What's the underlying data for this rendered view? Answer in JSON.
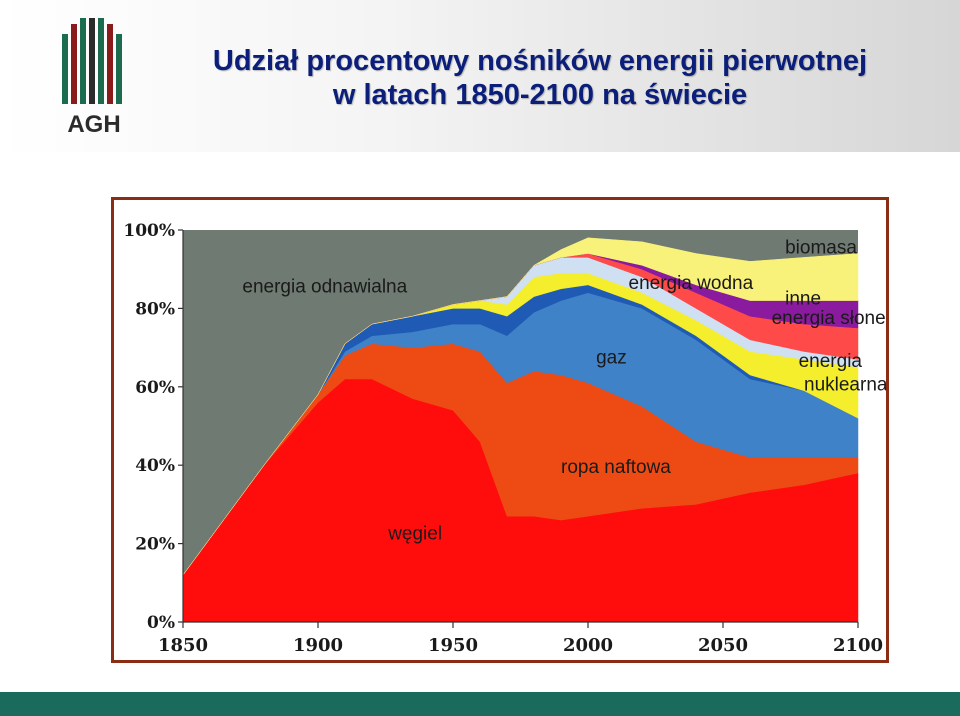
{
  "slide": {
    "title_line1": "Udział procentowy nośników energii pierwotnej",
    "title_line2": "w latach 1850-2100 na świecie",
    "logo_text": "AGH"
  },
  "colors": {
    "title": "#0b1f7a",
    "frame": "#8b2c14",
    "footer": "#1b6b5d",
    "plot_background": "#6f7a72"
  },
  "chart_data": {
    "type": "area",
    "stacked": true,
    "title": "",
    "xlabel": "",
    "ylabel": "",
    "xlim": [
      1850,
      2100
    ],
    "ylim": [
      0,
      100
    ],
    "x_ticks": [
      "1850",
      "1900",
      "1950",
      "2000",
      "2050",
      "2100"
    ],
    "y_ticks": [
      "0%",
      "20%",
      "40%",
      "60%",
      "80%",
      "100%"
    ],
    "grid": false,
    "legend": "none",
    "x": [
      1850,
      1880,
      1900,
      1910,
      1920,
      1935,
      1950,
      1960,
      1970,
      1980,
      1990,
      2000,
      2020,
      2040,
      2060,
      2080,
      2100
    ],
    "series": [
      {
        "key": "coal",
        "color": "#ff0d0d",
        "values": [
          12,
          40,
          56,
          62,
          62,
          57,
          54,
          46,
          27,
          27,
          26,
          27,
          29,
          30,
          33,
          35,
          38
        ]
      },
      {
        "key": "oil",
        "color": "#ee4b14",
        "values": [
          0,
          0,
          2,
          6,
          9,
          13,
          17,
          23,
          34,
          37,
          37,
          34,
          26,
          16,
          9,
          7,
          4
        ]
      },
      {
        "key": "gas",
        "color": "#3f82c8",
        "values": [
          0,
          0,
          0,
          1,
          2,
          4,
          5,
          7,
          12,
          15,
          19,
          23,
          25,
          26,
          20,
          17,
          10
        ]
      },
      {
        "key": "renewable",
        "color": "#1f5bb5",
        "values": [
          0,
          0,
          0,
          2,
          3,
          4,
          4,
          4,
          5,
          4,
          3,
          2,
          1,
          1,
          1,
          0,
          0
        ]
      },
      {
        "key": "nuclear",
        "color": "#f4ee2d",
        "values": [
          0,
          0,
          0,
          0,
          0,
          0,
          1,
          2,
          3,
          5,
          4,
          3,
          3,
          4,
          6,
          8,
          13
        ]
      },
      {
        "key": "hydro",
        "color": "#cfe0f2",
        "values": [
          0,
          0,
          0,
          0,
          0,
          0,
          0,
          0,
          2,
          3,
          4,
          4,
          4,
          3,
          3,
          2,
          2
        ]
      },
      {
        "key": "solar",
        "color": "#ff4a4a",
        "values": [
          0,
          0,
          0,
          0,
          0,
          0,
          0,
          0,
          0,
          0,
          0,
          1,
          2,
          4,
          6,
          7,
          8
        ]
      },
      {
        "key": "other",
        "color": "#8a1a9e",
        "values": [
          0,
          0,
          0,
          0,
          0,
          0,
          0,
          0,
          0,
          0,
          0,
          0,
          1,
          2,
          4,
          6,
          7
        ]
      },
      {
        "key": "biomass",
        "color": "#f8f27a",
        "values": [
          0,
          0,
          0,
          0,
          0,
          0,
          0,
          0,
          0,
          0,
          2,
          4,
          6,
          8,
          10,
          11,
          12
        ]
      }
    ],
    "annotations": [
      {
        "text": "energia odnawialna",
        "x": 1872,
        "y": 84
      },
      {
        "text": "energia wodna",
        "x": 2015,
        "y": 85
      },
      {
        "text": "biomasa",
        "x": 2073,
        "y": 94
      },
      {
        "text": "inne",
        "x": 2073,
        "y": 81
      },
      {
        "text": "energia słoneczna",
        "x": 2068,
        "y": 76
      },
      {
        "text": "gaz",
        "x": 2003,
        "y": 66
      },
      {
        "text": "energia",
        "x": 2078,
        "y": 65
      },
      {
        "text": "nuklearna",
        "x": 2080,
        "y": 59
      },
      {
        "text": "ropa naftowa",
        "x": 1990,
        "y": 38
      },
      {
        "text": "węgiel",
        "x": 1926,
        "y": 21
      }
    ]
  }
}
